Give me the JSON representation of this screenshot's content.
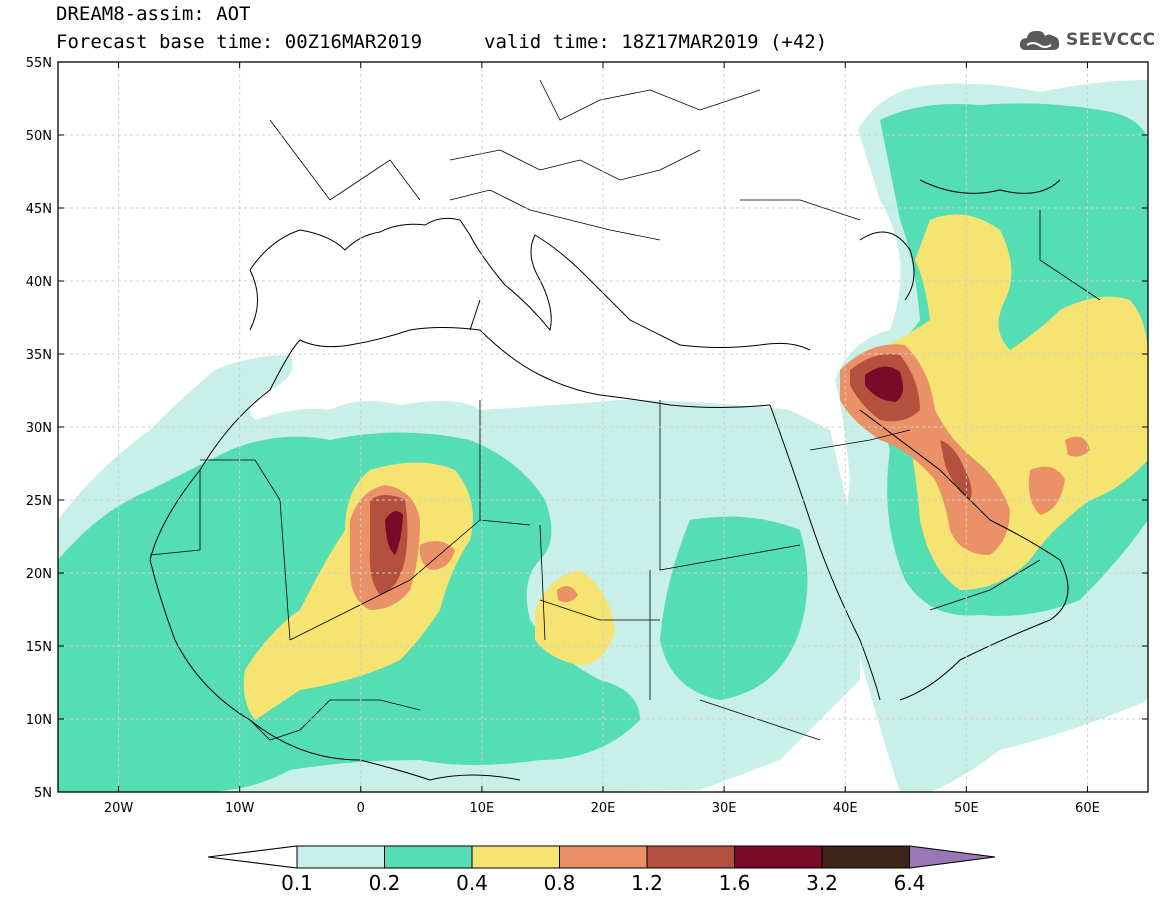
{
  "header": {
    "line1": "DREAM8-assim: AOT",
    "line2": "Forecast base time: 00Z16MAR2019",
    "line3": "valid time: 18Z17MAR2019 (+42)"
  },
  "logo": {
    "text": "SEEVCCC",
    "icon": "cloud-icon"
  },
  "map": {
    "lat_labels": [
      "55N",
      "50N",
      "45N",
      "40N",
      "35N",
      "30N",
      "25N",
      "20N",
      "15N",
      "10N",
      "5N"
    ],
    "lon_labels": [
      "20W",
      "10W",
      "0",
      "10E",
      "20E",
      "30E",
      "40E",
      "50E",
      "60E"
    ]
  },
  "colorbar": {
    "ticks": [
      "0.1",
      "0.2",
      "0.4",
      "0.8",
      "1.2",
      "1.6",
      "3.2",
      "6.4"
    ],
    "colors": [
      "#c8f0e8",
      "#55ddb4",
      "#f5e472",
      "#eb9168",
      "#b3513e",
      "#7a0a2a",
      "#3d2414",
      "#9a76b6"
    ]
  }
}
